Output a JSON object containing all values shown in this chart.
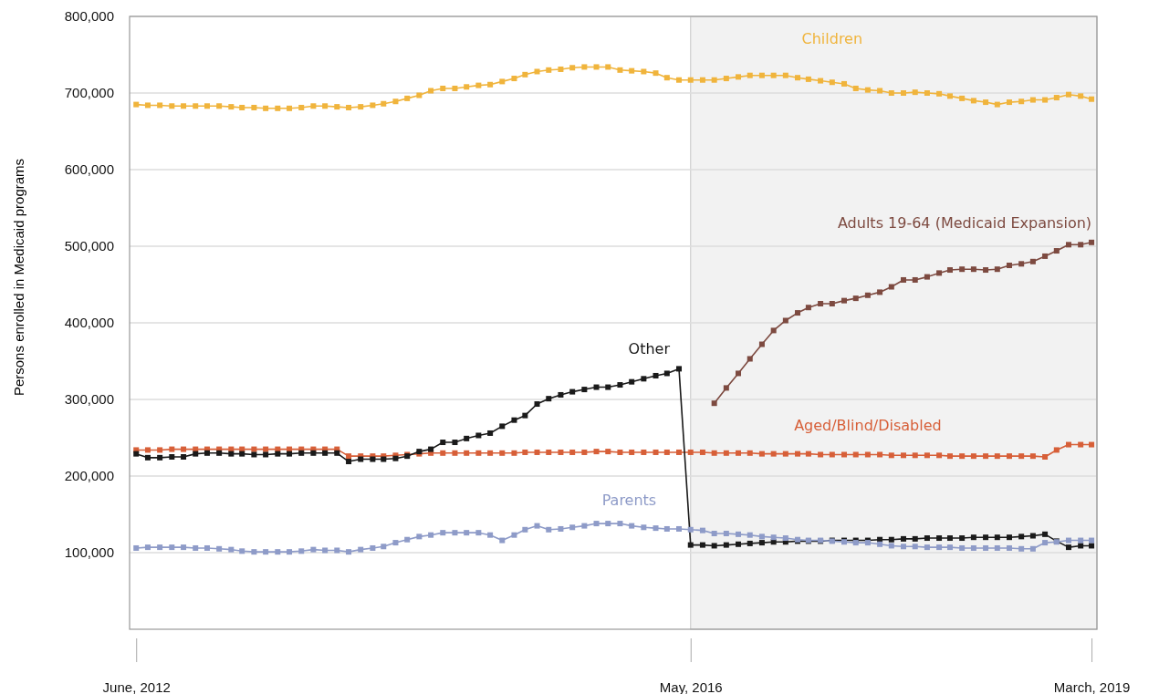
{
  "chart_data": {
    "type": "line",
    "ylabel": "Persons enrolled in Medicaid programs",
    "marker": "square",
    "line_style": "solid",
    "grid": "y",
    "legend": false,
    "xlim": [
      "2012-05-15",
      "2019-03-15"
    ],
    "xticks": [
      {
        "value": "2012-06",
        "label": "June, 2012"
      },
      {
        "value": "2016-05",
        "label": "May, 2016"
      },
      {
        "value": "2019-03",
        "label": "March, 2019"
      }
    ],
    "ylim": [
      0,
      800000
    ],
    "yticks": [
      {
        "value": 100000,
        "label": "100,000"
      },
      {
        "value": 200000,
        "label": "200,000"
      },
      {
        "value": 300000,
        "label": "300,000"
      },
      {
        "value": 400000,
        "label": "400,000"
      },
      {
        "value": 500000,
        "label": "500,000"
      },
      {
        "value": 600000,
        "label": "600,000"
      },
      {
        "value": 700000,
        "label": "700,000"
      },
      {
        "value": 800000,
        "label": "800,000"
      }
    ],
    "bands": [
      {
        "axis": "x",
        "from": "2016-05",
        "to": "2019-03-15",
        "color": "#f2f2f2"
      }
    ],
    "x": [
      "2012-06",
      "2012-07",
      "2012-08",
      "2012-09",
      "2012-10",
      "2012-11",
      "2012-12",
      "2013-01",
      "2013-02",
      "2013-03",
      "2013-04",
      "2013-05",
      "2013-06",
      "2013-07",
      "2013-08",
      "2013-09",
      "2013-10",
      "2013-11",
      "2013-12",
      "2014-01",
      "2014-02",
      "2014-03",
      "2014-04",
      "2014-05",
      "2014-06",
      "2014-07",
      "2014-08",
      "2014-09",
      "2014-10",
      "2014-11",
      "2014-12",
      "2015-01",
      "2015-02",
      "2015-03",
      "2015-04",
      "2015-05",
      "2015-06",
      "2015-07",
      "2015-08",
      "2015-09",
      "2015-10",
      "2015-11",
      "2015-12",
      "2016-01",
      "2016-02",
      "2016-03",
      "2016-04",
      "2016-05",
      "2016-06",
      "2016-07",
      "2016-08",
      "2016-09",
      "2016-10",
      "2016-11",
      "2016-12",
      "2017-01",
      "2017-02",
      "2017-03",
      "2017-04",
      "2017-05",
      "2017-06",
      "2017-07",
      "2017-08",
      "2017-09",
      "2017-10",
      "2017-11",
      "2017-12",
      "2018-01",
      "2018-02",
      "2018-03",
      "2018-04",
      "2018-05",
      "2018-06",
      "2018-07",
      "2018-08",
      "2018-09",
      "2018-10",
      "2018-11",
      "2018-12",
      "2019-01",
      "2019-02",
      "2019-03"
    ],
    "series": [
      {
        "name": "Children",
        "color": "#f0b43c",
        "values": [
          685000,
          684000,
          684000,
          683000,
          683000,
          683000,
          683000,
          683000,
          682000,
          681000,
          681000,
          680000,
          680000,
          680000,
          681000,
          683000,
          683000,
          682000,
          681000,
          682000,
          684000,
          686000,
          689000,
          693000,
          697000,
          703000,
          706000,
          706000,
          708000,
          710000,
          711000,
          715000,
          719000,
          724000,
          728000,
          730000,
          731000,
          733000,
          734000,
          734000,
          734000,
          730000,
          729000,
          728000,
          726000,
          720000,
          717000,
          717000,
          717000,
          717000,
          719000,
          721000,
          723000,
          723000,
          723000,
          723000,
          720000,
          718000,
          716000,
          714000,
          712000,
          706000,
          704000,
          703000,
          700000,
          700000,
          701000,
          700000,
          699000,
          696000,
          693000,
          690000,
          688000,
          685000,
          688000,
          689000,
          691000,
          691000,
          694000,
          698000,
          696000,
          692000
        ]
      },
      {
        "name": "Adults 19-64 (Medicaid Expansion)",
        "color": "#7d4a40",
        "values": [
          null,
          null,
          null,
          null,
          null,
          null,
          null,
          null,
          null,
          null,
          null,
          null,
          null,
          null,
          null,
          null,
          null,
          null,
          null,
          null,
          null,
          null,
          null,
          null,
          null,
          null,
          null,
          null,
          null,
          null,
          null,
          null,
          null,
          null,
          null,
          null,
          null,
          null,
          null,
          null,
          null,
          null,
          null,
          null,
          null,
          null,
          null,
          null,
          null,
          295000,
          315000,
          334000,
          353000,
          372000,
          390000,
          403000,
          413000,
          420000,
          425000,
          425000,
          429000,
          432000,
          436000,
          440000,
          447000,
          456000,
          456000,
          460000,
          465000,
          469000,
          470000,
          470000,
          469000,
          470000,
          475000,
          477000,
          480000,
          487000,
          494000,
          502000,
          502000,
          505000
        ]
      },
      {
        "name": "Aged/Blind/Disabled",
        "color": "#d75f38",
        "values": [
          234000,
          234000,
          234000,
          235000,
          235000,
          235000,
          235000,
          235000,
          235000,
          235000,
          235000,
          235000,
          235000,
          235000,
          235000,
          235000,
          235000,
          235000,
          226000,
          226000,
          226000,
          226000,
          227000,
          228000,
          229000,
          230000,
          230000,
          230000,
          230000,
          230000,
          230000,
          230000,
          230000,
          231000,
          231000,
          231000,
          231000,
          231000,
          231000,
          232000,
          232000,
          231000,
          231000,
          231000,
          231000,
          231000,
          231000,
          231000,
          231000,
          230000,
          230000,
          230000,
          230000,
          229000,
          229000,
          229000,
          229000,
          229000,
          228000,
          228000,
          228000,
          228000,
          228000,
          228000,
          227000,
          227000,
          227000,
          227000,
          227000,
          226000,
          226000,
          226000,
          226000,
          226000,
          226000,
          226000,
          226000,
          225000,
          234000,
          241000,
          241000,
          241000
        ]
      },
      {
        "name": "Other",
        "color": "#1a1a1a",
        "values": [
          229000,
          224000,
          224000,
          225000,
          225000,
          229000,
          230000,
          230000,
          229000,
          229000,
          228000,
          228000,
          229000,
          229000,
          230000,
          230000,
          230000,
          230000,
          219000,
          222000,
          222000,
          222000,
          223000,
          226000,
          232000,
          235000,
          244000,
          244000,
          249000,
          253000,
          256000,
          265000,
          273000,
          279000,
          294000,
          301000,
          306000,
          310000,
          313000,
          316000,
          316000,
          319000,
          323000,
          327000,
          331000,
          334000,
          340000,
          110000,
          110000,
          109000,
          110000,
          111000,
          112000,
          113000,
          114000,
          114000,
          115000,
          115000,
          115000,
          116000,
          116000,
          116000,
          116000,
          117000,
          117000,
          118000,
          118000,
          119000,
          119000,
          119000,
          119000,
          120000,
          120000,
          120000,
          120000,
          121000,
          122000,
          124000,
          115000,
          107000,
          109000,
          109000
        ]
      },
      {
        "name": "Parents",
        "color": "#8e9bc8",
        "values": [
          106000,
          107000,
          107000,
          107000,
          107000,
          106000,
          106000,
          105000,
          104000,
          102000,
          101000,
          101000,
          101000,
          101000,
          102000,
          104000,
          103000,
          103000,
          101000,
          104000,
          106000,
          108000,
          113000,
          117000,
          121000,
          123000,
          126000,
          126000,
          126000,
          126000,
          123000,
          116000,
          123000,
          130000,
          135000,
          130000,
          131000,
          133000,
          135000,
          138000,
          138000,
          138000,
          135000,
          133000,
          132000,
          131000,
          131000,
          130000,
          129000,
          125000,
          125000,
          124000,
          123000,
          121000,
          120000,
          119000,
          117000,
          116000,
          116000,
          115000,
          114000,
          113000,
          113000,
          111000,
          109000,
          108000,
          108000,
          107000,
          107000,
          107000,
          106000,
          106000,
          106000,
          106000,
          106000,
          105000,
          105000,
          113000,
          114000,
          116000,
          116000,
          116000
        ]
      }
    ]
  }
}
